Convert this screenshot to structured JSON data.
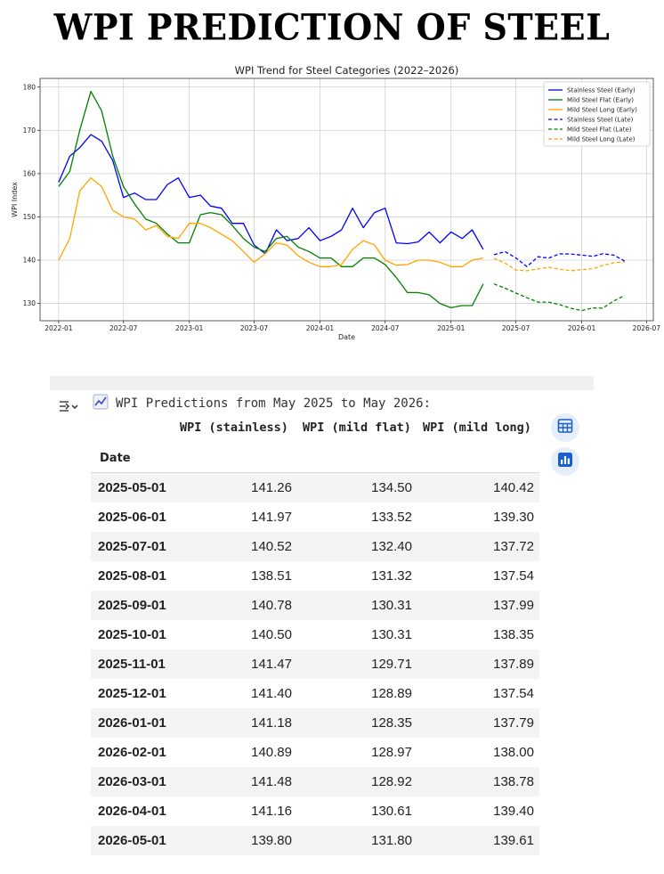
{
  "page": {
    "title": "WPI PREDICTION OF STEEL"
  },
  "chart_data": {
    "type": "line",
    "title": "WPI Trend for Steel Categories (2022–2026)",
    "xlabel": "Date",
    "ylabel": "WPI Index",
    "xlim": [
      "2021-11-10",
      "2026-07-20"
    ],
    "ylim": [
      126,
      182
    ],
    "x_ticks": [
      "2022-01-01",
      "2022-07-01",
      "2023-01-01",
      "2023-07-01",
      "2024-01-01",
      "2024-07-01",
      "2025-01-01",
      "2025-07-01",
      "2026-01-01",
      "2026-07-01"
    ],
    "x_tick_labels": [
      "2022-01",
      "2022-07",
      "2023-01",
      "2023-07",
      "2024-01",
      "2024-07",
      "2025-01",
      "2025-07",
      "2026-01",
      "2026-07"
    ],
    "y_ticks": [
      130,
      140,
      150,
      160,
      170,
      180
    ],
    "grid": true,
    "legend_position": "top-right",
    "early_dates": [
      "2022-01-01",
      "2022-02-01",
      "2022-03-01",
      "2022-04-01",
      "2022-05-01",
      "2022-06-01",
      "2022-07-01",
      "2022-08-01",
      "2022-09-01",
      "2022-10-01",
      "2022-11-01",
      "2022-12-01",
      "2023-01-01",
      "2023-02-01",
      "2023-03-01",
      "2023-04-01",
      "2023-05-01",
      "2023-06-01",
      "2023-07-01",
      "2023-08-01",
      "2023-09-01",
      "2023-10-01",
      "2023-11-01",
      "2023-12-01",
      "2024-01-01",
      "2024-02-01",
      "2024-03-01",
      "2024-04-01",
      "2024-05-01",
      "2024-06-01",
      "2024-07-01",
      "2024-08-01",
      "2024-09-01",
      "2024-10-01",
      "2024-11-01",
      "2024-12-01",
      "2025-01-01",
      "2025-02-01",
      "2025-03-01",
      "2025-04-01"
    ],
    "late_dates": [
      "2025-05-01",
      "2025-06-01",
      "2025-07-01",
      "2025-08-01",
      "2025-09-01",
      "2025-10-01",
      "2025-11-01",
      "2025-12-01",
      "2026-01-01",
      "2026-02-01",
      "2026-03-01",
      "2026-04-01",
      "2026-05-01"
    ],
    "series": [
      {
        "name": "Stainless Steel (Early)",
        "color": "#0000ff",
        "dash": false,
        "segment": "early",
        "values": [
          158,
          164,
          166,
          169,
          167.5,
          163,
          154.5,
          155.5,
          154,
          154,
          157.5,
          159,
          154.5,
          155,
          152.5,
          152,
          148.5,
          148.5,
          143.5,
          141.5,
          147,
          144.5,
          145,
          147.5,
          144.5,
          145.5,
          147,
          152,
          147.5,
          151,
          152,
          144,
          143.8,
          144.2,
          146.5,
          144,
          146.5,
          145,
          147,
          142.5
        ]
      },
      {
        "name": "Mild Steel Flat (Early)",
        "color": "#008000",
        "dash": false,
        "segment": "early",
        "values": [
          157,
          160.5,
          170,
          179,
          174.5,
          164,
          157,
          153,
          149.5,
          148.5,
          146,
          144,
          144,
          150.5,
          151,
          150.5,
          148,
          145,
          143,
          142,
          145,
          145.5,
          143,
          142,
          140.5,
          140.5,
          138.5,
          138.5,
          140.5,
          140.5,
          139,
          136,
          132.5,
          132.5,
          132,
          130,
          129,
          129.5,
          129.5,
          134.5
        ]
      },
      {
        "name": "Mild Steel Long (Early)",
        "color": "#ffa500",
        "dash": false,
        "segment": "early",
        "values": [
          140,
          145,
          156,
          159,
          157,
          151.5,
          150,
          149.5,
          147,
          148,
          145.5,
          145,
          148.5,
          148.5,
          147.5,
          146,
          144.5,
          142,
          139.5,
          141.5,
          144,
          143.5,
          141,
          139.5,
          138.5,
          138.5,
          139,
          142.5,
          144.5,
          143.5,
          140,
          138.8,
          139,
          140,
          140,
          139.5,
          138.5,
          138.5,
          140,
          140.5
        ]
      },
      {
        "name": "Stainless Steel (Late)",
        "color": "#0000ff",
        "dash": true,
        "segment": "late",
        "values": [
          141.26,
          141.97,
          140.52,
          138.51,
          140.78,
          140.5,
          141.47,
          141.4,
          141.18,
          140.89,
          141.48,
          141.16,
          139.8
        ]
      },
      {
        "name": "Mild Steel Flat (Late)",
        "color": "#008000",
        "dash": true,
        "segment": "late",
        "values": [
          134.5,
          133.52,
          132.4,
          131.32,
          130.31,
          130.31,
          129.71,
          128.89,
          128.35,
          128.97,
          128.92,
          130.61,
          131.8
        ]
      },
      {
        "name": "Mild Steel Long (Late)",
        "color": "#ffa500",
        "dash": true,
        "segment": "late",
        "values": [
          140.42,
          139.3,
          137.72,
          137.54,
          137.99,
          138.35,
          137.89,
          137.54,
          137.79,
          138.0,
          138.78,
          139.4,
          139.61
        ]
      }
    ]
  },
  "output": {
    "heading": "WPI Predictions from May 2025 to May 2026:",
    "chart_emoji": "📈",
    "columns": [
      "WPI (stainless)",
      "WPI (mild flat)",
      "WPI (mild long)"
    ],
    "index_name": "Date",
    "rows": [
      {
        "date": "2025-05-01",
        "stainless": "141.26",
        "mild_flat": "134.50",
        "mild_long": "140.42"
      },
      {
        "date": "2025-06-01",
        "stainless": "141.97",
        "mild_flat": "133.52",
        "mild_long": "139.30"
      },
      {
        "date": "2025-07-01",
        "stainless": "140.52",
        "mild_flat": "132.40",
        "mild_long": "137.72"
      },
      {
        "date": "2025-08-01",
        "stainless": "138.51",
        "mild_flat": "131.32",
        "mild_long": "137.54"
      },
      {
        "date": "2025-09-01",
        "stainless": "140.78",
        "mild_flat": "130.31",
        "mild_long": "137.99"
      },
      {
        "date": "2025-10-01",
        "stainless": "140.50",
        "mild_flat": "130.31",
        "mild_long": "138.35"
      },
      {
        "date": "2025-11-01",
        "stainless": "141.47",
        "mild_flat": "129.71",
        "mild_long": "137.89"
      },
      {
        "date": "2025-12-01",
        "stainless": "141.40",
        "mild_flat": "128.89",
        "mild_long": "137.54"
      },
      {
        "date": "2026-01-01",
        "stainless": "141.18",
        "mild_flat": "128.35",
        "mild_long": "137.79"
      },
      {
        "date": "2026-02-01",
        "stainless": "140.89",
        "mild_flat": "128.97",
        "mild_long": "138.00"
      },
      {
        "date": "2026-03-01",
        "stainless": "141.48",
        "mild_flat": "128.92",
        "mild_long": "138.78"
      },
      {
        "date": "2026-04-01",
        "stainless": "141.16",
        "mild_flat": "130.61",
        "mild_long": "139.40"
      },
      {
        "date": "2026-05-01",
        "stainless": "139.80",
        "mild_flat": "131.80",
        "mild_long": "139.61"
      }
    ],
    "icons": {
      "table": "table-icon",
      "chart": "bar-chart-icon",
      "toggle": "output-toggle-icon"
    }
  }
}
